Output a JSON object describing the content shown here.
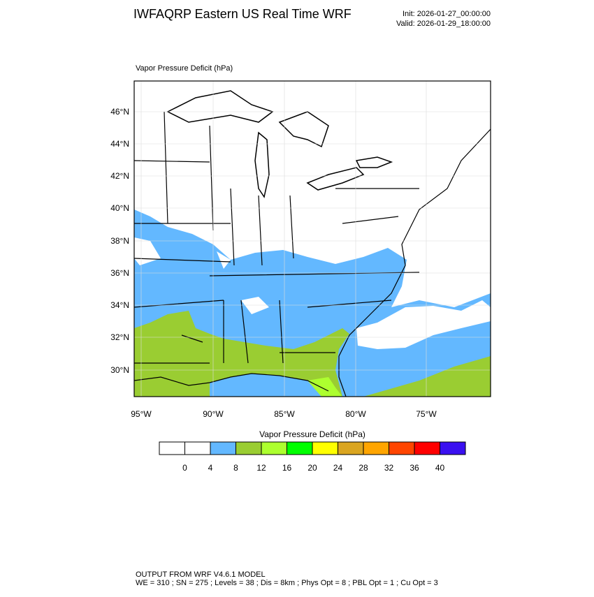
{
  "header": {
    "title": "IWFAQRP Eastern US Real Time WRF",
    "init": "Init: 2026-01-27_00:00:00",
    "valid": "Valid: 2026-01-29_18:00:00"
  },
  "map": {
    "label": "Vapor Pressure Deficit   (hPa)",
    "lat_ticks": [
      "46°N",
      "44°N",
      "42°N",
      "40°N",
      "38°N",
      "36°N",
      "34°N",
      "32°N",
      "30°N"
    ],
    "lon_ticks": [
      "95°W",
      "90°W",
      "85°W",
      "80°W",
      "75°W"
    ]
  },
  "colorbar": {
    "title": "Vapor Pressure Deficit  (hPa)",
    "levels": [
      0,
      4,
      8,
      12,
      16,
      20,
      24,
      28,
      32,
      36,
      40
    ],
    "colors": [
      "#ffffff",
      "#ffffff",
      "#63b8ff",
      "#9acd32",
      "#adff2f",
      "#00ff00",
      "#ffff00",
      "#daa520",
      "#ffa500",
      "#ff4500",
      "#ff0000",
      "#3a10f0"
    ]
  },
  "footer": {
    "line1": "OUTPUT FROM WRF V4.6.1 MODEL",
    "line2": "WE = 310 ; SN = 275 ; Levels = 38 ; Dis = 8km ; Phys Opt = 8 ; PBL Opt = 1 ; Cu Opt = 3"
  }
}
